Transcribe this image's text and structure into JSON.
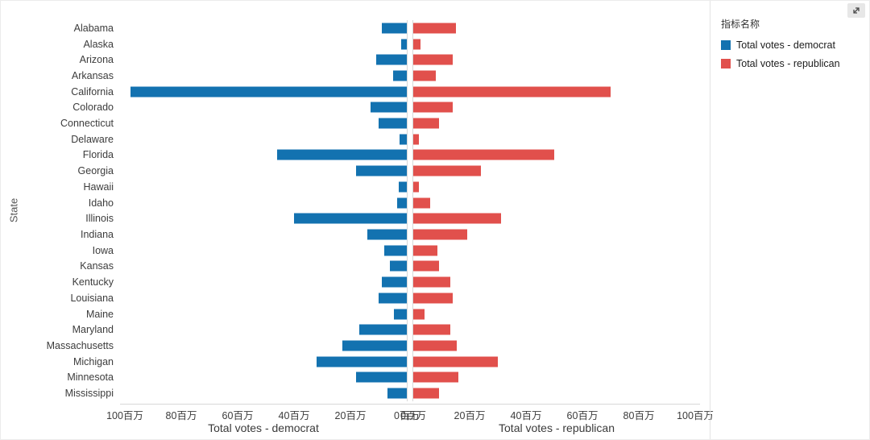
{
  "page": {
    "background": "#ffffff"
  },
  "icons": {
    "expand_icon": "expand-arrow"
  },
  "legend": {
    "title": "指标名称",
    "items": [
      {
        "label": "Total votes - democrat",
        "color": "#1372B0"
      },
      {
        "label": "Total votes - republican",
        "color": "#E1504C"
      }
    ]
  },
  "chart_data": {
    "type": "bar",
    "variant": "diverging-horizontal",
    "y_axis_title": "State",
    "categories": [
      "Alabama",
      "Alaska",
      "Arizona",
      "Arkansas",
      "California",
      "Colorado",
      "Connecticut",
      "Delaware",
      "Florida",
      "Georgia",
      "Hawaii",
      "Idaho",
      "Illinois",
      "Indiana",
      "Iowa",
      "Kansas",
      "Kentucky",
      "Louisiana",
      "Maine",
      "Maryland",
      "Massachusetts",
      "Michigan",
      "Minnesota",
      "Mississippi"
    ],
    "unit": "百万",
    "series": [
      {
        "name": "Total votes - democrat",
        "color": "#1372B0",
        "axis": "left",
        "values": [
          9,
          2,
          11,
          5,
          98,
          13,
          10,
          2.5,
          46,
          18,
          3,
          3.5,
          40,
          14,
          8,
          6,
          9,
          10,
          4.5,
          17,
          23,
          32,
          18,
          7
        ]
      },
      {
        "name": "Total votes - republican",
        "color": "#E1504C",
        "axis": "right",
        "values": [
          15,
          2.5,
          14,
          8,
          70,
          14,
          9,
          2,
          50,
          24,
          2,
          6,
          31,
          19,
          8.5,
          9,
          13,
          14,
          4,
          13,
          15.5,
          30,
          16,
          9
        ]
      }
    ],
    "x_axis": {
      "max": 100,
      "left_title": "Total votes - democrat",
      "right_title": "Total votes - republican",
      "left_ticks": [
        {
          "value": 100,
          "label": "100百万"
        },
        {
          "value": 80,
          "label": "80百万"
        },
        {
          "value": 60,
          "label": "60百万"
        },
        {
          "value": 40,
          "label": "40百万"
        },
        {
          "value": 20,
          "label": "20百万"
        },
        {
          "value": 0,
          "label": "0百万"
        }
      ],
      "right_ticks": [
        {
          "value": 0,
          "label": "0百万"
        },
        {
          "value": 20,
          "label": "20百万"
        },
        {
          "value": 40,
          "label": "40百万"
        },
        {
          "value": 60,
          "label": "60百万"
        },
        {
          "value": 80,
          "label": "80百万"
        },
        {
          "value": 100,
          "label": "100百万"
        }
      ]
    }
  }
}
